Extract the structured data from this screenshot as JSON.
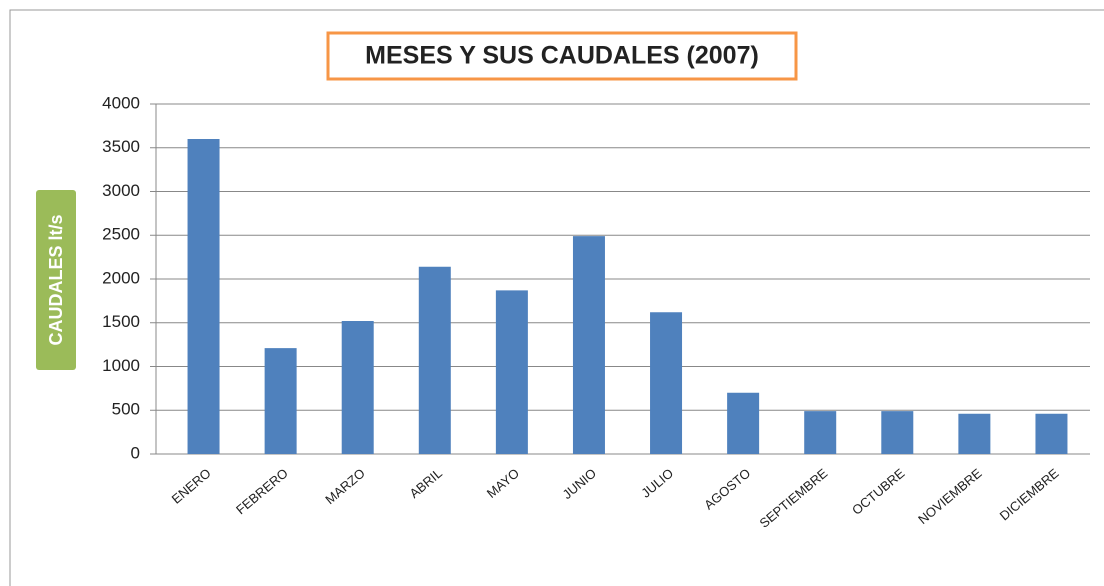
{
  "chart_data": {
    "type": "bar",
    "title": "MESES Y SUS CAUDALES (2007)",
    "y_label": "CAUDALES lt/s",
    "categories": [
      "ENERO",
      "FEBRERO",
      "MARZO",
      "ABRIL",
      "MAYO",
      "JUNIO",
      "JULIO",
      "AGOSTO",
      "SEPTIEMBRE",
      "OCTUBRE",
      "NOVIEMBRE",
      "DICIEMBRE"
    ],
    "values": [
      3600,
      1210,
      1520,
      2140,
      1870,
      2490,
      1620,
      700,
      490,
      490,
      460,
      460
    ],
    "color": "#4f81bd",
    "ylim": [
      0,
      4000
    ],
    "yticks": [
      0,
      500,
      1000,
      1500,
      2000,
      2500,
      3000,
      3500,
      4000
    ],
    "grid": true
  }
}
